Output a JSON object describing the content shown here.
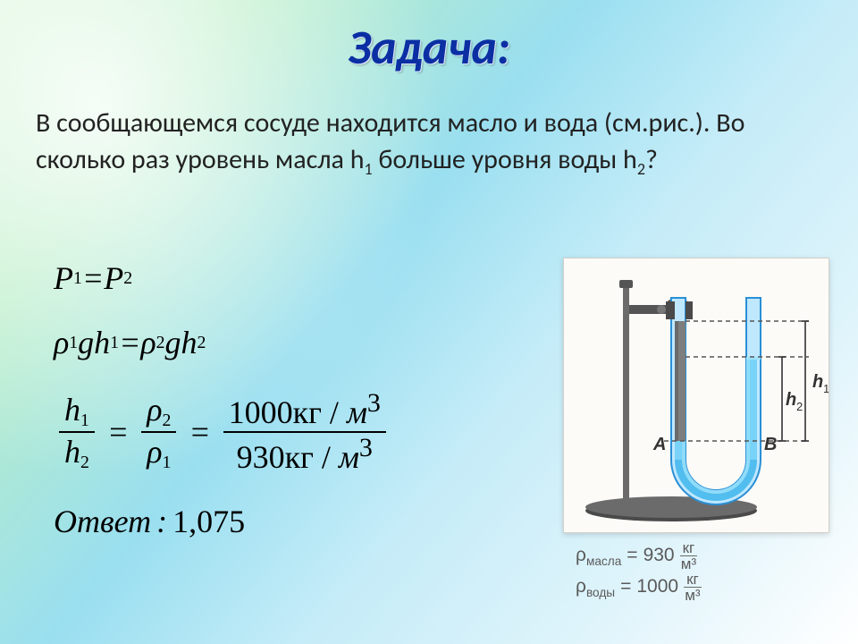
{
  "title": "Задача:",
  "problem_html": "В сообщающемся сосуде находится масло и вода (см.рис.). Во сколько раз уровень масла h<sub>1</sub> больше уровня воды h<sub>2</sub>?",
  "formulas": {
    "line1_html": "<span class='it'>P</span><sub>1</sub> = <span class='it'>P</span><sub>2</sub>",
    "line2_html": "<span class='it'>&rho;</span><sub>1</sub><span class='it'>g</span><span class='it'>h</span><sub>1</sub> = <span class='it'>&rho;</span><sub>2</sub><span class='it'>g</span><span class='it'>h</span><sub>2</sub>",
    "line3": {
      "frac1_num": "<span class='it'>h</span><sub>1</sub>",
      "frac1_den": "<span class='it'>h</span><sub>2</sub>",
      "frac2_num": "<span class='it'>&rho;</span><sub>2</sub>",
      "frac2_den": "<span class='it'>&rho;</span><sub>1</sub>",
      "frac3_num": "1000<span class='upright'>кг</span> / <span class='it'>м</span><sup>3</sup>",
      "frac3_den": "930<span class='upright'>кг</span> / <span class='it'>м</span><sup>3</sup>"
    },
    "answer_label": "Ответ",
    "answer_value": "1,075"
  },
  "diagram": {
    "panel_bg": "#fdfbf7",
    "panel_border": "#d2d0c8",
    "base_color": "#4a4a4a",
    "stand_color": "#6b6b6b",
    "clamp_color": "#555555",
    "tube_outline": "#2a8fd6",
    "tube_wall": "#bfe8ff",
    "water_color": "#79d2f7",
    "water_dark": "#52bdef",
    "oil_color": "#7e7e7e",
    "dashed_color": "#555555",
    "label_color": "#333333",
    "labels": {
      "A": "A",
      "B": "B",
      "h1": "h₁",
      "h2": "h₂"
    }
  },
  "rho": {
    "oil_label": "ρ<sub>масла</sub>",
    "oil_value": "930",
    "water_label": "ρ<sub>воды</sub>",
    "water_value": "1000",
    "unit_top": "кг",
    "unit_bot": "м³",
    "text_color": "#5a5a5a"
  },
  "colors": {
    "title": "#0b2fa3",
    "body_text": "#222222",
    "formula_text": "#000000"
  }
}
